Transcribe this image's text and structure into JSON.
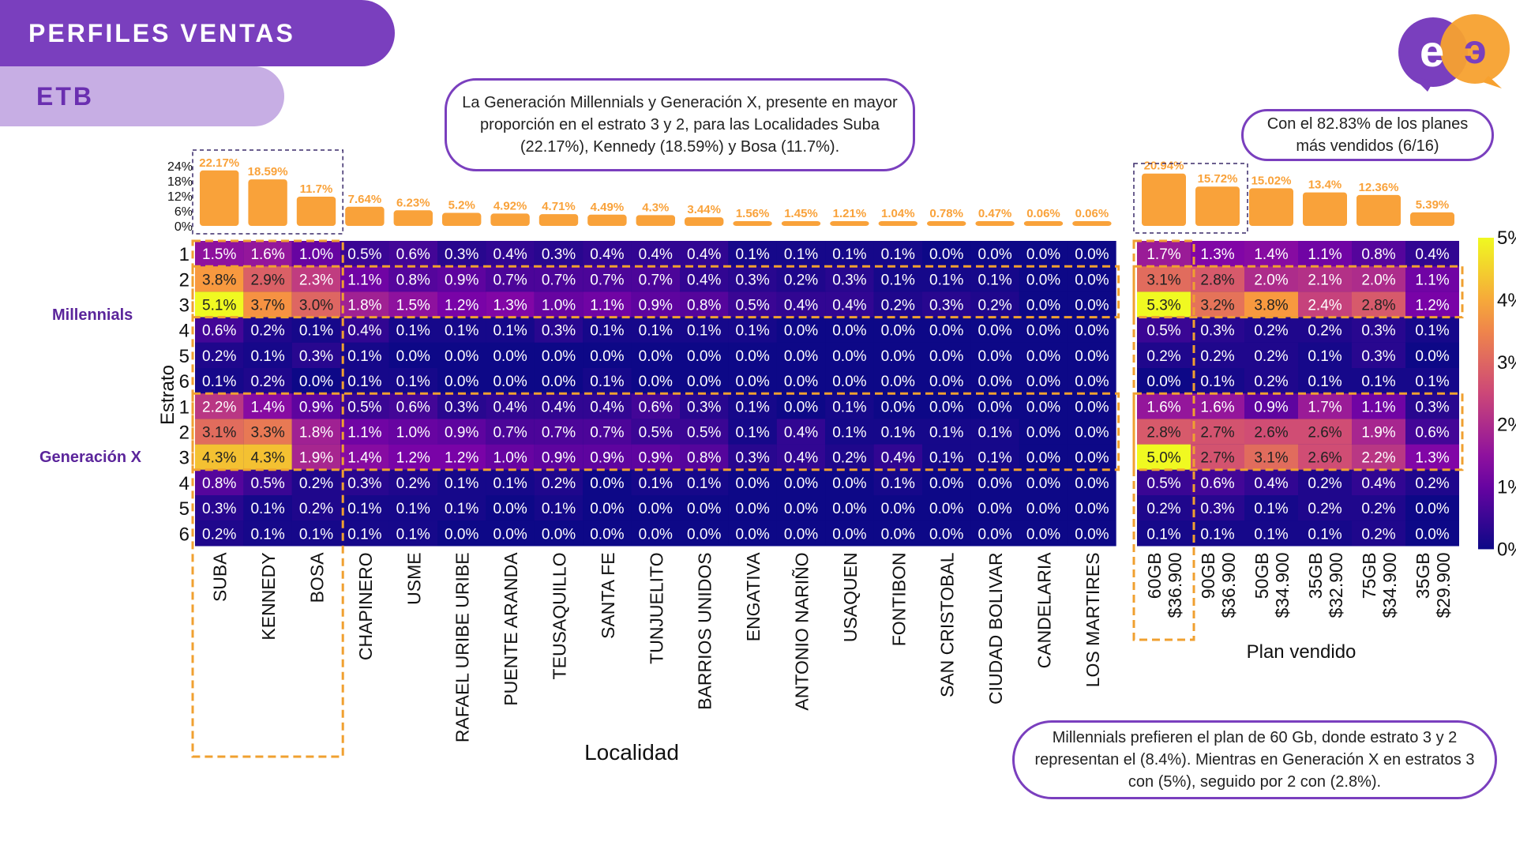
{
  "header": {
    "title": "PERFILES VENTAS",
    "subtitle": "ETB"
  },
  "callouts": {
    "top": "La Generación Millennials y Generación X, presente en mayor proporción en el estrato 3 y 2, para las Localidades Suba (22.17%), Kennedy (18.59%) y Bosa (11.7%).",
    "plans": "Con el 82.83% de los planes más vendidos (6/16)",
    "bottom": "Millennials prefieren el plan de 60 Gb, donde estrato 3 y 2 representan el (8.4%). Mientras en Generación X en estratos 3  con (5%), seguido por 2 con (2.8%)."
  },
  "generation_labels": {
    "millennials": "Millennials",
    "genx": "Generación X"
  },
  "colors": {
    "brand_purple": "#7a3fbe",
    "bar_orange": "#f9a23a",
    "highlight_orange": "#f0a030",
    "logo_purple": "#7a3fbe",
    "logo_orange": "#f7a12f"
  },
  "chart_data": [
    {
      "type": "bar",
      "categories": [
        "SUBA",
        "KENNEDY",
        "BOSA",
        "CHAPINERO",
        "USME",
        "RAFAEL URIBE URIBE",
        "PUENTE ARANDA",
        "TEUSAQUILLO",
        "SANTA FE",
        "TUNJUELITO",
        "BARRIOS UNIDOS",
        "ENGATIVA",
        "ANTONIO NARIÑO",
        "USAQUEN",
        "FONTIBON",
        "SAN CRISTOBAL",
        "CIUDAD BOLIVAR",
        "CANDELARIA",
        "LOS MARTIRES"
      ],
      "values": [
        22.17,
        18.59,
        11.7,
        7.64,
        6.23,
        5.2,
        4.92,
        4.71,
        4.49,
        4.3,
        3.44,
        1.56,
        1.45,
        1.21,
        1.04,
        0.78,
        0.47,
        0.06,
        0.06
      ],
      "value_labels": [
        "22.17%",
        "18.59%",
        "11.7%",
        "7.64%",
        "6.23%",
        "5.2%",
        "4.92%",
        "4.71%",
        "4.49%",
        "4.3%",
        "3.44%",
        "1.56%",
        "1.45%",
        "1.21%",
        "1.04%",
        "0.78%",
        "0.47%",
        "0.06%",
        "0.06%"
      ],
      "y_ticks": [
        "0%",
        "6%",
        "12%",
        "18%",
        "24%"
      ],
      "ylim": [
        0,
        24
      ]
    },
    {
      "type": "heatmap",
      "xlabel": "Localidad",
      "ylabel": "Estrato",
      "row_labels": [
        "1",
        "2",
        "3",
        "4",
        "5",
        "6",
        "1",
        "2",
        "3",
        "4",
        "5",
        "6"
      ],
      "col_labels": [
        "SUBA",
        "KENNEDY",
        "BOSA",
        "CHAPINERO",
        "USME",
        "RAFAEL URIBE URIBE",
        "PUENTE ARANDA",
        "TEUSAQUILLO",
        "SANTA FE",
        "TUNJUELITO",
        "BARRIOS UNIDOS",
        "ENGATIVA",
        "ANTONIO NARIÑO",
        "USAQUEN",
        "FONTIBON",
        "SAN CRISTOBAL",
        "CIUDAD BOLIVAR",
        "CANDELARIA",
        "LOS MARTIRES"
      ],
      "values": [
        [
          1.5,
          1.6,
          1.0,
          0.5,
          0.6,
          0.3,
          0.4,
          0.3,
          0.4,
          0.4,
          0.4,
          0.1,
          0.1,
          0.1,
          0.1,
          0.0,
          0.0,
          0.0,
          0.0
        ],
        [
          3.8,
          2.9,
          2.3,
          1.1,
          0.8,
          0.9,
          0.7,
          0.7,
          0.7,
          0.7,
          0.4,
          0.3,
          0.2,
          0.3,
          0.1,
          0.1,
          0.1,
          0.0,
          0.0
        ],
        [
          5.1,
          3.7,
          3.0,
          1.8,
          1.5,
          1.2,
          1.3,
          1.0,
          1.1,
          0.9,
          0.8,
          0.5,
          0.4,
          0.4,
          0.2,
          0.3,
          0.2,
          0.0,
          0.0
        ],
        [
          0.6,
          0.2,
          0.1,
          0.4,
          0.1,
          0.1,
          0.1,
          0.3,
          0.1,
          0.1,
          0.1,
          0.1,
          0.0,
          0.0,
          0.0,
          0.0,
          0.0,
          0.0,
          0.0
        ],
        [
          0.2,
          0.1,
          0.3,
          0.1,
          0.0,
          0.0,
          0.0,
          0.0,
          0.0,
          0.0,
          0.0,
          0.0,
          0.0,
          0.0,
          0.0,
          0.0,
          0.0,
          0.0,
          0.0
        ],
        [
          0.1,
          0.2,
          0.0,
          0.1,
          0.1,
          0.0,
          0.0,
          0.0,
          0.1,
          0.0,
          0.0,
          0.0,
          0.0,
          0.0,
          0.0,
          0.0,
          0.0,
          0.0,
          0.0
        ],
        [
          2.2,
          1.4,
          0.9,
          0.5,
          0.6,
          0.3,
          0.4,
          0.4,
          0.4,
          0.6,
          0.3,
          0.1,
          0.0,
          0.1,
          0.0,
          0.0,
          0.0,
          0.0,
          0.0
        ],
        [
          3.1,
          3.3,
          1.8,
          1.1,
          1.0,
          0.9,
          0.7,
          0.7,
          0.7,
          0.5,
          0.5,
          0.1,
          0.4,
          0.1,
          0.1,
          0.1,
          0.1,
          0.0,
          0.0
        ],
        [
          4.3,
          4.3,
          1.9,
          1.4,
          1.2,
          1.2,
          1.0,
          0.9,
          0.9,
          0.9,
          0.8,
          0.3,
          0.4,
          0.2,
          0.4,
          0.1,
          0.1,
          0.0,
          0.0
        ],
        [
          0.8,
          0.5,
          0.2,
          0.3,
          0.2,
          0.1,
          0.1,
          0.2,
          0.0,
          0.1,
          0.1,
          0.0,
          0.0,
          0.0,
          0.1,
          0.0,
          0.0,
          0.0,
          0.0
        ],
        [
          0.3,
          0.1,
          0.2,
          0.1,
          0.1,
          0.1,
          0.0,
          0.1,
          0.0,
          0.0,
          0.0,
          0.0,
          0.0,
          0.0,
          0.0,
          0.0,
          0.0,
          0.0,
          0.0
        ],
        [
          0.2,
          0.1,
          0.1,
          0.1,
          0.1,
          0.0,
          0.0,
          0.0,
          0.0,
          0.0,
          0.0,
          0.0,
          0.0,
          0.0,
          0.0,
          0.0,
          0.0,
          0.0,
          0.0
        ]
      ],
      "vmin": 0,
      "vmax": 5
    },
    {
      "type": "bar",
      "categories": [
        "60GB $36.900",
        "90GB $36.900",
        "50GB $34.900",
        "35GB $32.900",
        "75GB $34.900",
        "35GB $29.900"
      ],
      "values": [
        20.94,
        15.72,
        15.02,
        13.4,
        12.36,
        5.39
      ],
      "value_labels": [
        "20.94%",
        "15.72%",
        "15.02%",
        "13.4%",
        "12.36%",
        "5.39%"
      ]
    },
    {
      "type": "heatmap",
      "xlabel": "Plan vendido",
      "col_labels": [
        [
          "60GB",
          "$36.900"
        ],
        [
          "90GB",
          "$36.900"
        ],
        [
          "50GB",
          "$34.900"
        ],
        [
          "35GB",
          "$32.900"
        ],
        [
          "75GB",
          "$34.900"
        ],
        [
          "35GB",
          "$29.900"
        ]
      ],
      "values": [
        [
          1.7,
          1.3,
          1.4,
          1.1,
          0.8,
          0.4
        ],
        [
          3.1,
          2.8,
          2.0,
          2.1,
          2.0,
          1.1
        ],
        [
          5.3,
          3.2,
          3.8,
          2.4,
          2.8,
          1.2
        ],
        [
          0.5,
          0.3,
          0.2,
          0.2,
          0.3,
          0.1
        ],
        [
          0.2,
          0.2,
          0.2,
          0.1,
          0.3,
          0.0
        ],
        [
          0.0,
          0.1,
          0.2,
          0.1,
          0.1,
          0.1
        ],
        [
          1.6,
          1.6,
          0.9,
          1.7,
          1.1,
          0.3
        ],
        [
          2.8,
          2.7,
          2.6,
          2.6,
          1.9,
          0.6
        ],
        [
          5.0,
          2.7,
          3.1,
          2.6,
          2.2,
          1.3
        ],
        [
          0.5,
          0.6,
          0.4,
          0.2,
          0.4,
          0.2
        ],
        [
          0.2,
          0.3,
          0.1,
          0.2,
          0.2,
          0.0
        ],
        [
          0.1,
          0.1,
          0.1,
          0.1,
          0.2,
          0.0
        ]
      ],
      "vmin": 0,
      "vmax": 5
    },
    {
      "type": "colorbar",
      "tick_labels": [
        "0%",
        "1%",
        "2%",
        "3%",
        "4%",
        "5%"
      ]
    }
  ]
}
